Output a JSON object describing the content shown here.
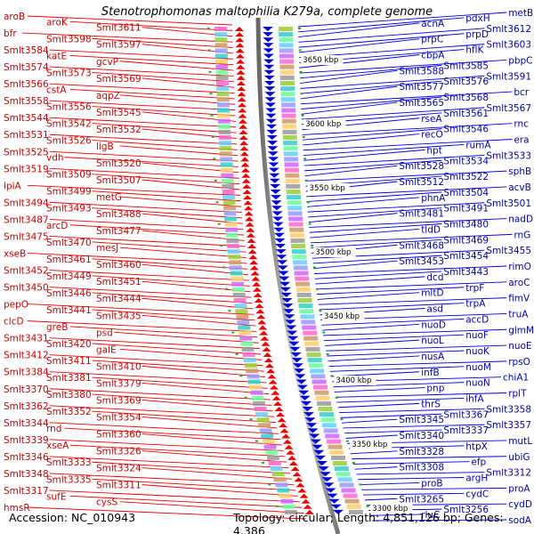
{
  "title": "Stenotrophomonas maltophilia K279a, complete genome",
  "footer": {
    "accession": "Accession: NC_010943",
    "topology": "Topology: circular; Length: 4,851,126 bp; Genes: 4,386"
  },
  "colors": {
    "left_strand": "#ee0000",
    "right_strand": "#0000dd",
    "backbone": "#999999"
  },
  "positions_kbp": [
    {
      "label": "3650 kbp"
    },
    {
      "label": "3600 kbp"
    },
    {
      "label": "3550 kbp"
    },
    {
      "label": "3500 kbp"
    },
    {
      "label": "3450 kbp"
    },
    {
      "label": "3400 kbp"
    },
    {
      "label": "3350 kbp"
    },
    {
      "label": "3300 kbp"
    }
  ],
  "left_genes": [
    "aroB",
    "aroK",
    "Smlt3611",
    "bfr",
    "Smlt3598",
    "Smlt3597",
    "Smlt3584",
    "katE",
    "gcvP",
    "Smlt3574",
    "Smlt3573",
    "Smlt3569",
    "Smlt3566",
    "cstA",
    "aqpZ",
    "Smlt3558",
    "Smlt3556",
    "Smlt3545",
    "Smlt3544",
    "Smlt3542",
    "Smlt3532",
    "Smlt3531",
    "Smlt3526",
    "ligB",
    "Smlt3525",
    "vdh",
    "Smlt3520",
    "Smlt3519",
    "Smlt3509",
    "Smlt3507",
    "lpiA",
    "Smlt3499",
    "metG",
    "Smlt3494",
    "Smlt3493",
    "Smlt3488",
    "Smlt3487",
    "arcD",
    "Smlt3477",
    "Smlt3475",
    "Smlt3470",
    "mesJ",
    "xseB",
    "Smlt3461",
    "Smlt3460",
    "Smlt3452",
    "Smlt3449",
    "Smlt3451",
    "Smlt3450",
    "Smlt3446",
    "Smlt3444",
    "pepO",
    "Smlt3441",
    "Smlt3435",
    "clcD",
    "greB",
    "psd",
    "Smlt3431",
    "Smlt3420",
    "galE",
    "Smlt3412",
    "Smlt3411",
    "Smlt3410",
    "Smlt3384",
    "Smlt3381",
    "Smlt3379",
    "Smlt3370",
    "Smlt3380",
    "Smlt3369",
    "Smlt3362",
    "Smlt3352",
    "Smlt3354",
    "Smlt3344",
    "rnd",
    "Smlt3360",
    "Smlt3339",
    "xseA",
    "Smlt3326",
    "Smlt3346",
    "Smlt3333",
    "Smlt3324",
    "Smlt3348",
    "Smlt3335",
    "Smlt3311",
    "Smlt3317",
    "sufE",
    "cysS",
    "hmsR"
  ],
  "right_genes": [
    "metB",
    "pdxH",
    "acnA",
    "Smlt3612",
    "prpD",
    "prpC",
    "Smlt3603",
    "hflK",
    "cbpA",
    "pbpC",
    "Smlt3585",
    "Smlt3588",
    "Smlt3591",
    "Smlt3576",
    "Smlt3577",
    "bcr",
    "Smlt3568",
    "Smlt3565",
    "Smlt3567",
    "Smlt3561",
    "rseA",
    "rnc",
    "Smlt3546",
    "recO",
    "era",
    "rumA",
    "hpt",
    "Smlt3533",
    "Smlt3534",
    "Smlt3528",
    "sphB",
    "Smlt3522",
    "Smlt3512",
    "acvB",
    "Smlt3504",
    "phnA",
    "Smlt3501",
    "Smlt3491",
    "Smlt3481",
    "nadD",
    "Smlt3480",
    "tldD",
    "rnG",
    "Smlt3469",
    "Smlt3468",
    "Smlt3455",
    "Smlt3454",
    "Smlt3453",
    "rimO",
    "Smlt3443",
    "dcd",
    "aroC",
    "trpF",
    "mltD",
    "fimV",
    "trpA",
    "asd",
    "truA",
    "accD",
    "nuoD",
    "glmM",
    "nuoF",
    "nuoL",
    "nuoE",
    "nuoK",
    "nusA",
    "rpsO",
    "nuoM",
    "infB",
    "chiA1",
    "nuoN",
    "pnp",
    "rplT",
    "ihfA",
    "thrS",
    "Smlt3358",
    "Smlt3367",
    "Smlt3345",
    "Smlt3357",
    "Smlt3337",
    "Smlt3340",
    "mutL",
    "htpX",
    "Smlt3328",
    "ubiG",
    "efp",
    "Smlt3308",
    "Smlt3312",
    "argH",
    "proB",
    "proA",
    "cydC",
    "Smlt3265",
    "cydD",
    "Smlt3256",
    "rluC",
    "sodA"
  ]
}
